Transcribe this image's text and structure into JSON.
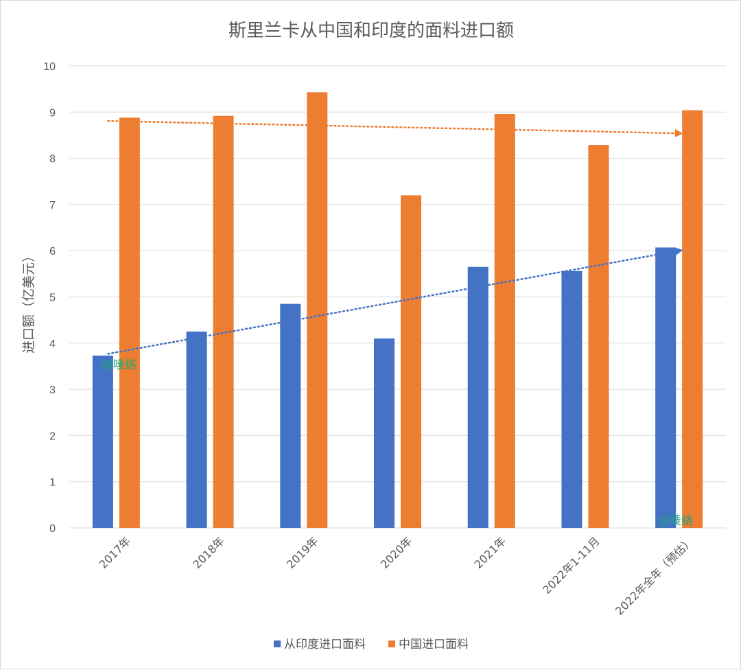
{
  "chart_data": {
    "type": "bar",
    "title": "斯里兰卡从中国和印度的面料进口额",
    "ylabel": "进口额（亿美元）",
    "xlabel": "",
    "ylim": [
      0,
      10
    ],
    "yticks": [
      0,
      1,
      2,
      3,
      4,
      5,
      6,
      7,
      8,
      9,
      10
    ],
    "categories": [
      "2017年",
      "2018年",
      "2019年",
      "2020年",
      "2021年",
      "2022年1-11月",
      "2022年全年（预估）"
    ],
    "series": [
      {
        "name": "从印度进口面料",
        "color": "#4472c4",
        "values": [
          3.73,
          4.25,
          4.85,
          4.1,
          5.65,
          5.56,
          6.07
        ]
      },
      {
        "name": "中国进口面料",
        "color": "#ed7d31",
        "values": [
          8.88,
          8.92,
          9.43,
          7.2,
          8.96,
          8.29,
          9.04
        ]
      }
    ],
    "trendlines": [
      {
        "series": "从印度进口面料",
        "type": "linear",
        "color": "#4472c4"
      },
      {
        "series": "中国进口面料",
        "type": "linear",
        "color": "#ed7d31"
      }
    ],
    "grid": true,
    "legend_position": "bottom",
    "watermark": "@唛络"
  }
}
